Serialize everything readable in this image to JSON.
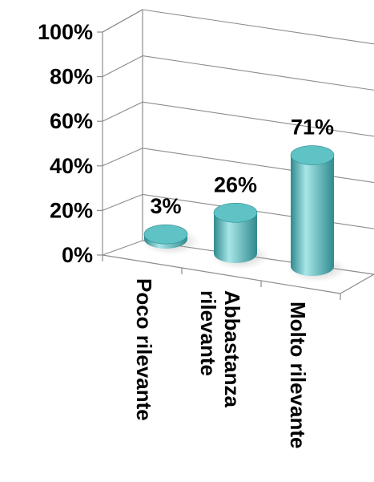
{
  "chart_data": {
    "type": "bar",
    "categories": [
      "Poco rilevante",
      "Abbastanza rilevante",
      "Molto rilevante"
    ],
    "category_lines": [
      [
        "Poco rilevante"
      ],
      [
        "Abbastanza",
        "rilevante"
      ],
      [
        "Molto rilevante"
      ]
    ],
    "values": [
      3,
      26,
      71
    ],
    "data_labels": [
      "3%",
      "26%",
      "71%"
    ],
    "yticks": [
      "0%",
      "20%",
      "40%",
      "60%",
      "80%",
      "100%"
    ],
    "ylim": [
      0,
      100
    ],
    "grid": true,
    "style": "3d-cylinder",
    "colors": {
      "bar": "#5fc3c6",
      "bar_dark": "#2f8a8e",
      "bar_light": "#a8e6e8",
      "grid": "#8c8c8c"
    }
  }
}
